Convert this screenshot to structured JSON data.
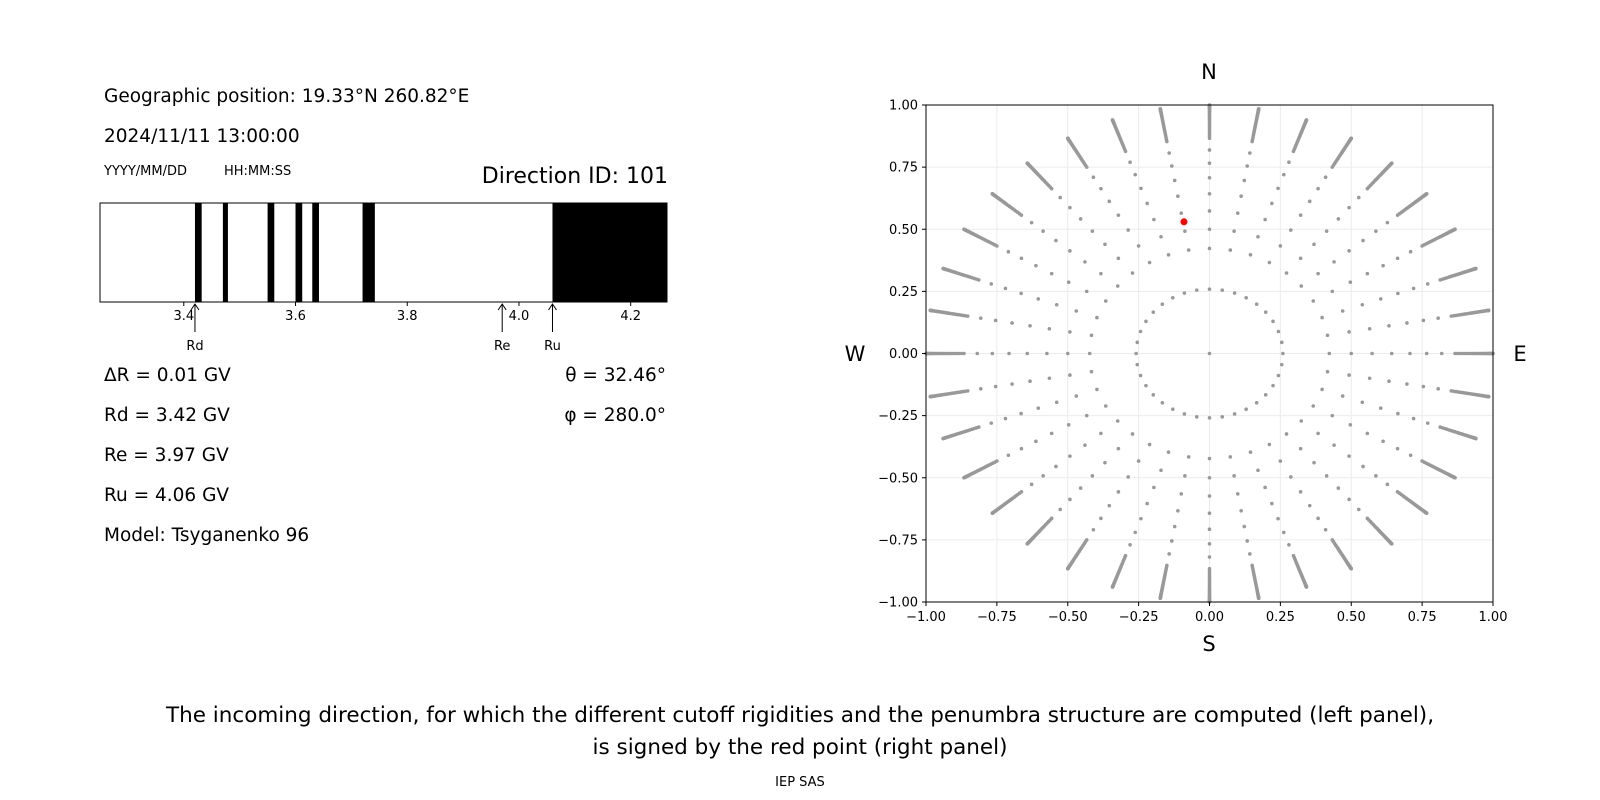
{
  "left_panel": {
    "geo_position": "Geographic position: 19.33°N 260.82°E",
    "datetime": "2024/11/11 13:00:00",
    "date_format_label": "YYYY/MM/DD",
    "time_format_label": "HH:MM:SS",
    "direction_id": "Direction ID: 101",
    "delta_r": "ΔR = 0.01 GV",
    "rd": "Rd = 3.42 GV",
    "re": "Re = 3.97 GV",
    "ru": "Ru = 4.06 GV",
    "model": "Model: Tsyganenko 96",
    "theta": "θ = 32.46°",
    "phi": "φ = 280.0°"
  },
  "caption": {
    "line1": "The incoming direction, for which the different cutoff rigidities and the penumbra structure are computed (left panel),",
    "line2": "is signed by the red point (right panel)"
  },
  "footer": "IEP SAS",
  "chart_data": [
    {
      "type": "penumbra-bar",
      "xlim": [
        3.25,
        4.265
      ],
      "ticks": [
        3.4,
        3.6,
        3.8,
        4.0,
        4.2
      ],
      "tick_labels": [
        "3.4",
        "3.6",
        "3.8",
        "4.0",
        "4.2"
      ],
      "forbidden_bands": [
        [
          3.42,
          3.432
        ],
        [
          3.47,
          3.479
        ],
        [
          3.55,
          3.562
        ],
        [
          3.6,
          3.612
        ],
        [
          3.63,
          3.642
        ],
        [
          3.72,
          3.742
        ],
        [
          4.06,
          4.265
        ]
      ],
      "markers": [
        {
          "label": "Rd",
          "value": 3.42
        },
        {
          "label": "Re",
          "value": 3.97
        },
        {
          "label": "Ru",
          "value": 4.06
        }
      ]
    },
    {
      "type": "scatter",
      "xlim": [
        -1,
        1
      ],
      "ylim": [
        -1,
        1
      ],
      "ticks": [
        -1.0,
        -0.75,
        -0.5,
        -0.25,
        0.0,
        0.25,
        0.5,
        0.75,
        1.0
      ],
      "tick_labels": [
        "−1.00",
        "−0.75",
        "−0.50",
        "−0.25",
        "0.00",
        "0.25",
        "0.50",
        "0.75",
        "1.00"
      ],
      "grid": true,
      "compass": {
        "north": "N",
        "south": "S",
        "west": "W",
        "east": "E"
      },
      "grey_color": "#999999",
      "highlight_color": "#ff0000",
      "direction_grid": {
        "rings_deg": [
          0,
          15,
          25,
          30,
          35,
          40,
          45,
          50,
          55,
          60,
          65,
          70,
          75,
          80,
          85,
          90
        ],
        "azimuth_step_deg": 10,
        "radial_step_deg": 1,
        "radial_from_deg": 60
      },
      "highlight_point": {
        "x": -0.09,
        "y": 0.53
      }
    }
  ]
}
